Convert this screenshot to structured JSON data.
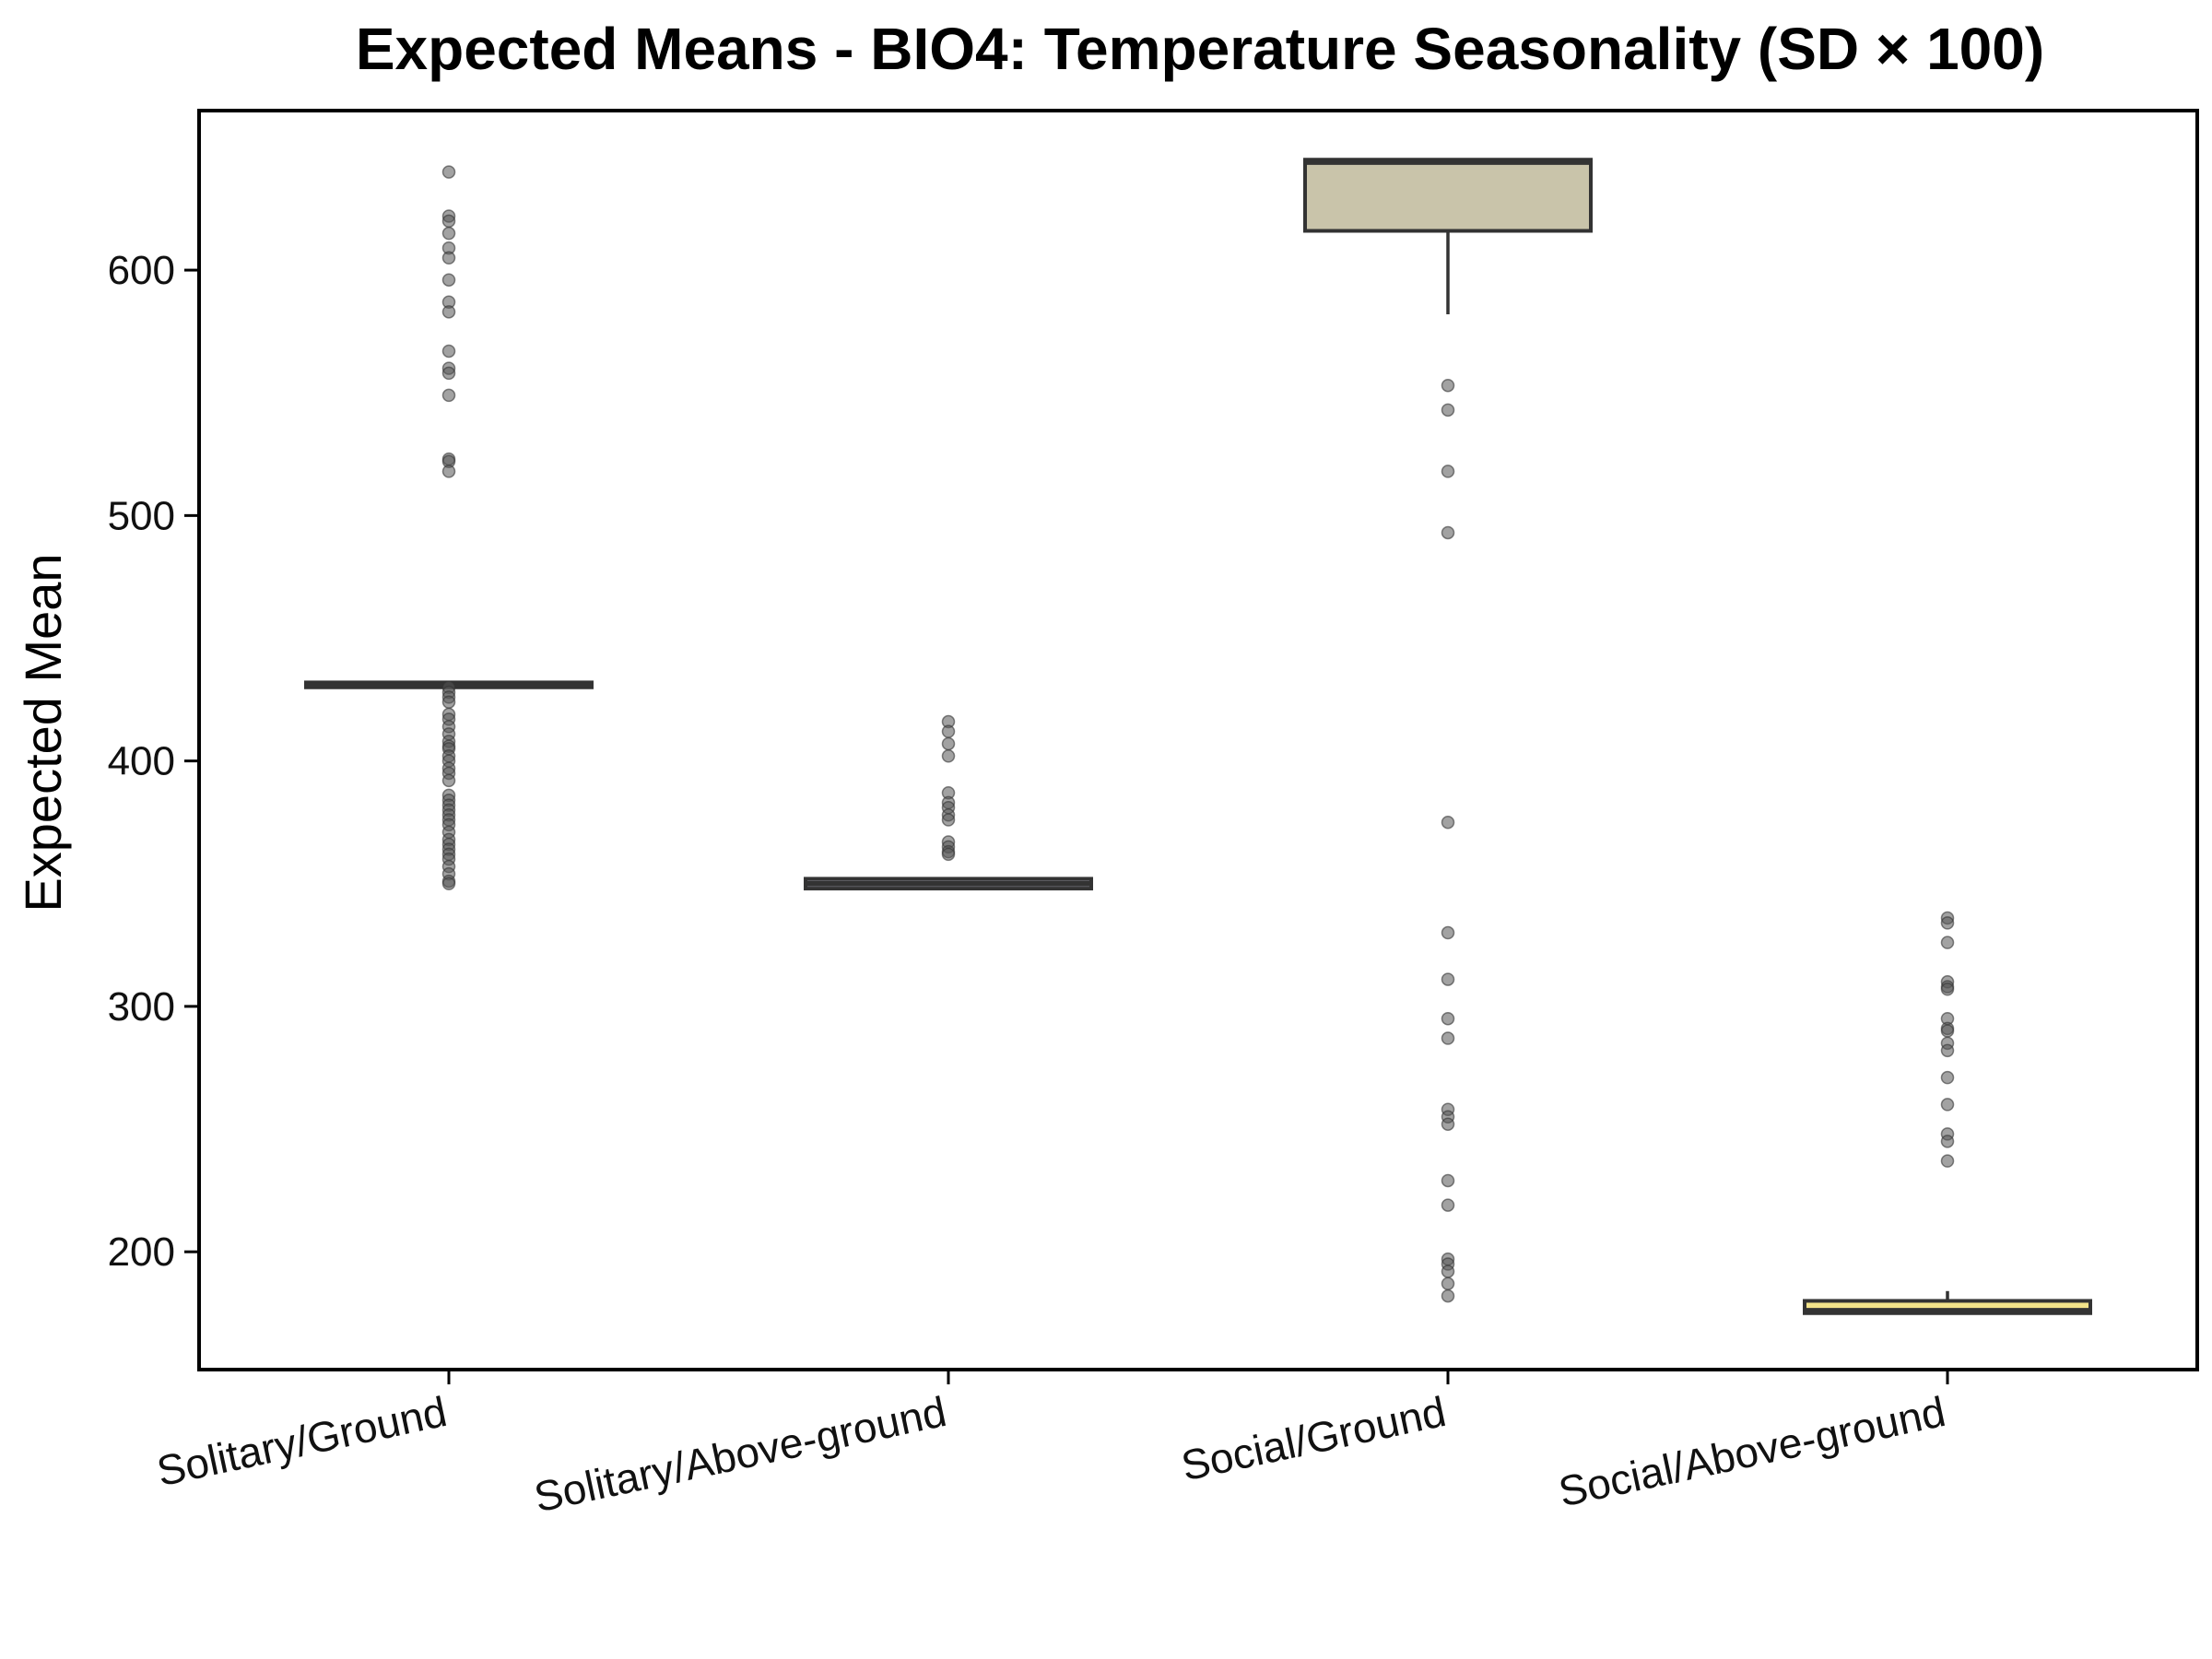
{
  "chart_data": {
    "type": "box",
    "title": "Expected Means - BIO4: Temperature Seasonality (SD × 100)",
    "xlabel": "",
    "ylabel": "Expected Mean",
    "ylim": [
      152,
      665
    ],
    "yticks": [
      200,
      300,
      400,
      500,
      600
    ],
    "grid": false,
    "legend": "none",
    "categories": [
      "Solitary/Ground",
      "Solitary/Above-ground",
      "Social/Ground",
      "Social/Above-ground"
    ],
    "boxes": [
      {
        "category": "Solitary/Ground",
        "q1": 430,
        "median": 431,
        "q3": 432,
        "whisker_low": 430,
        "whisker_high": 432,
        "fill": "#ffffff",
        "outliers": [
          640,
          622,
          620,
          615,
          609,
          605,
          596,
          587,
          583,
          567,
          560,
          558,
          549,
          523,
          522,
          518,
          430,
          428,
          426,
          424,
          419,
          417,
          414,
          411,
          408,
          406,
          405,
          402,
          400,
          397,
          395,
          392,
          386,
          384,
          382,
          380,
          378,
          376,
          374,
          371,
          368,
          366,
          364,
          362,
          360,
          357,
          354,
          351,
          350
        ]
      },
      {
        "category": "Solitary/Above-ground",
        "q1": 348,
        "median": 350,
        "q3": 352,
        "whisker_low": 348,
        "whisker_high": 352,
        "fill": "#b8b8c8",
        "outliers": [
          416,
          412,
          407,
          402,
          387,
          383,
          381,
          378,
          376,
          367,
          365,
          363,
          362
        ]
      },
      {
        "category": "Social/Ground",
        "q1": 616,
        "median": 644,
        "q3": 645,
        "whisker_low": 582,
        "whisker_high": 645,
        "fill": "#c9c4aa",
        "outliers": [
          553,
          543,
          518,
          493,
          375,
          330,
          311,
          295,
          287,
          258,
          255,
          252,
          229,
          219,
          197,
          195,
          192,
          187,
          182
        ]
      },
      {
        "category": "Social/Above-ground",
        "q1": 175,
        "median": 176,
        "q3": 180,
        "whisker_low": 175,
        "whisker_high": 184,
        "fill": "#f3e38a",
        "outliers": [
          336,
          334,
          326,
          310,
          308,
          307,
          295,
          291,
          290,
          285,
          282,
          271,
          260,
          248,
          245,
          237
        ]
      }
    ]
  }
}
